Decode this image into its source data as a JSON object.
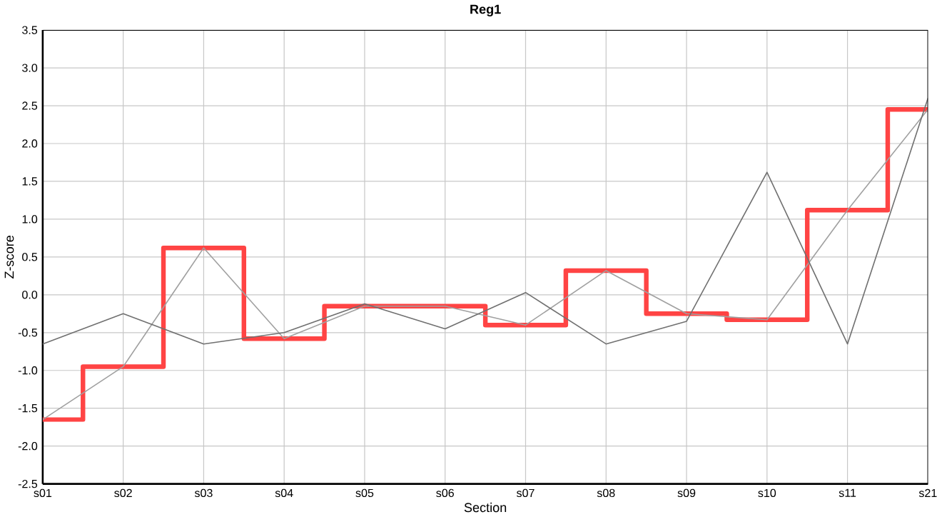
{
  "chart_data": {
    "type": "line",
    "title": "Reg1",
    "xlabel": "Section",
    "ylabel": "Z-score",
    "categories": [
      "s01",
      "s02",
      "s03",
      "s04",
      "s05",
      "s06",
      "s07",
      "s08",
      "s09",
      "s10",
      "s11",
      "s21"
    ],
    "ylim": [
      -2.5,
      3.5
    ],
    "yticks": [
      {
        "value": -2.5,
        "label": "-2.5"
      },
      {
        "value": -2,
        "label": "-2.0"
      },
      {
        "value": -1.5,
        "label": "-1.5"
      },
      {
        "value": -1,
        "label": "-1.0"
      },
      {
        "value": -0.5,
        "label": "-0.5"
      },
      {
        "value": 0,
        "label": "0.0"
      },
      {
        "value": 0.5,
        "label": "0.5"
      },
      {
        "value": 1,
        "label": "1.0"
      },
      {
        "value": 1.5,
        "label": "1.5"
      },
      {
        "value": 2,
        "label": "2.0"
      },
      {
        "value": 2.5,
        "label": "2.5"
      },
      {
        "value": 3,
        "label": "3.0"
      },
      {
        "value": 3.5,
        "label": "3.5"
      }
    ],
    "grid": true,
    "series": [
      {
        "type": "step",
        "color": "#ff4444",
        "values": [
          -1.65,
          -0.95,
          0.62,
          -0.58,
          -0.15,
          -0.15,
          -0.4,
          0.32,
          -0.25,
          -0.33,
          1.12,
          2.45
        ]
      },
      {
        "color": "#a0a0a0",
        "values": [
          -1.65,
          -0.95,
          0.62,
          -0.58,
          -0.15,
          -0.15,
          -0.4,
          0.32,
          -0.25,
          -0.33,
          1.12,
          2.45
        ]
      },
      {
        "color": "#707070",
        "values": [
          -0.65,
          -0.25,
          -0.65,
          -0.5,
          -0.12,
          -0.45,
          0.03,
          -0.65,
          -0.35,
          1.62,
          -0.65,
          2.6
        ]
      }
    ]
  }
}
